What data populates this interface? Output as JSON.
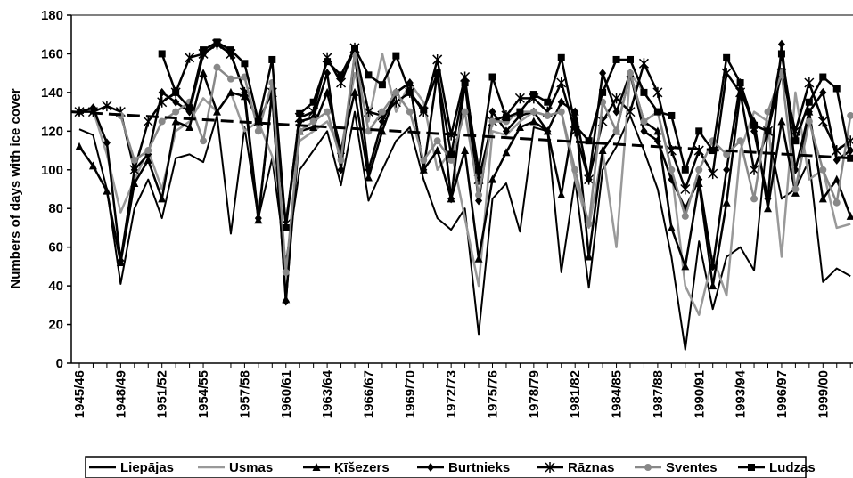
{
  "chart_data": {
    "type": "line",
    "y_label": "Numbers of days with ice cover",
    "categories": [
      "1945/46",
      null,
      null,
      "1948/49",
      null,
      null,
      "1951/52",
      null,
      null,
      "1954/55",
      null,
      null,
      "1957/58",
      null,
      null,
      "1960/61",
      null,
      null,
      "1963/64",
      null,
      null,
      "1966/67",
      null,
      null,
      "1969/70",
      null,
      null,
      "1972/73",
      null,
      null,
      "1975/76",
      null,
      null,
      "1978/79",
      null,
      null,
      "1981/82",
      null,
      null,
      "1984/85",
      null,
      null,
      "1987/88",
      null,
      null,
      "1990/91",
      null,
      null,
      "1993/94",
      null,
      null,
      "1996/97",
      null,
      null,
      "1999/00",
      null,
      null
    ],
    "ylim": [
      0,
      180
    ],
    "yticks": [
      0,
      20,
      40,
      60,
      80,
      100,
      120,
      140,
      160,
      180
    ],
    "trend": [
      130,
      106
    ],
    "series": [
      {
        "name": "Liepājas",
        "color": "#000000",
        "marker": "none",
        "values": [
          121,
          118,
          90,
          41,
          80,
          95,
          75,
          106,
          108,
          104,
          128,
          67,
          122,
          75,
          106,
          52,
          100,
          110,
          120,
          92,
          130,
          84,
          100,
          115,
          122,
          95,
          75,
          69,
          80,
          15,
          85,
          93,
          68,
          122,
          120,
          47,
          95,
          39,
          100,
          112,
          128,
          110,
          90,
          55,
          7,
          63,
          28,
          55,
          60,
          48,
          120,
          85,
          90,
          105,
          42,
          49,
          45
        ]
      },
      {
        "name": "Usmas",
        "color": "#999999",
        "marker": "none",
        "values": [
          130,
          131,
          108,
          78,
          95,
          110,
          90,
          120,
          125,
          137,
          130,
          140,
          120,
          125,
          107,
          75,
          115,
          120,
          125,
          110,
          150,
          125,
          160,
          130,
          145,
          135,
          100,
          110,
          75,
          40,
          120,
          118,
          125,
          130,
          128,
          130,
          95,
          70,
          110,
          60,
          150,
          140,
          130,
          100,
          40,
          25,
          55,
          35,
          110,
          130,
          125,
          55,
          140,
          95,
          100,
          70,
          72
        ]
      },
      {
        "name": "Ķīšezers",
        "color": "#000000",
        "marker": "triangle",
        "values": [
          112,
          102,
          89,
          52,
          93,
          105,
          85,
          125,
          122,
          150,
          130,
          140,
          138,
          74,
          140,
          33,
          120,
          122,
          140,
          110,
          140,
          96,
          120,
          140,
          145,
          100,
          110,
          85,
          110,
          54,
          95,
          109,
          122,
          125,
          120,
          87,
          130,
          55,
          110,
          120,
          150,
          125,
          120,
          70,
          50,
          93,
          40,
          83,
          140,
          125,
          80,
          125,
          88,
          130,
          85,
          95,
          76
        ]
      },
      {
        "name": "Burtnieks",
        "color": "#000000",
        "marker": "diamond",
        "values": [
          130,
          132,
          114,
          53,
          100,
          108,
          140,
          135,
          130,
          160,
          165,
          160,
          140,
          75,
          140,
          32,
          125,
          127,
          150,
          100,
          160,
          100,
          125,
          140,
          145,
          100,
          150,
          85,
          145,
          84,
          130,
          120,
          128,
          130,
          120,
          135,
          130,
          95,
          150,
          130,
          150,
          120,
          115,
          95,
          80,
          95,
          50,
          100,
          145,
          120,
          85,
          165,
          100,
          130,
          140,
          105,
          110
        ]
      },
      {
        "name": "Rāznas",
        "color": "#000000",
        "marker": "star",
        "values": [
          130,
          130,
          133,
          130,
          100,
          125,
          135,
          140,
          158,
          160,
          165,
          160,
          140,
          125,
          140,
          72,
          127,
          130,
          158,
          145,
          163,
          130,
          128,
          135,
          140,
          130,
          157,
          118,
          148,
          95,
          125,
          128,
          137,
          137,
          130,
          145,
          120,
          95,
          125,
          137,
          130,
          155,
          140,
          110,
          90,
          110,
          98,
          150,
          140,
          100,
          120,
          150,
          120,
          145,
          125,
          110,
          115
        ]
      },
      {
        "name": "Sventes",
        "color": "#888888",
        "marker": "circle",
        "values": [
          null,
          null,
          null,
          128,
          105,
          110,
          125,
          130,
          135,
          115,
          153,
          147,
          148,
          120,
          145,
          47,
          120,
          125,
          130,
          105,
          160,
          120,
          130,
          140,
          130,
          105,
          115,
          105,
          130,
          87,
          125,
          125,
          130,
          130,
          128,
          130,
          100,
          72,
          135,
          120,
          150,
          125,
          130,
          100,
          76,
          100,
          115,
          108,
          115,
          85,
          130,
          150,
          90,
          125,
          100,
          83,
          128
        ]
      },
      {
        "name": "Ludzas",
        "color": "#000000",
        "marker": "square",
        "values": [
          null,
          null,
          null,
          null,
          null,
          null,
          160,
          140,
          132,
          162,
          166,
          162,
          155,
          125,
          157,
          70,
          129,
          135,
          156,
          149,
          163,
          149,
          144,
          159,
          140,
          131,
          150,
          108,
          145,
          100,
          148,
          127,
          130,
          139,
          135,
          158,
          123,
          115,
          140,
          157,
          157,
          140,
          130,
          128,
          100,
          120,
          110,
          158,
          145,
          123,
          120,
          160,
          115,
          135,
          148,
          142,
          106
        ]
      }
    ]
  }
}
